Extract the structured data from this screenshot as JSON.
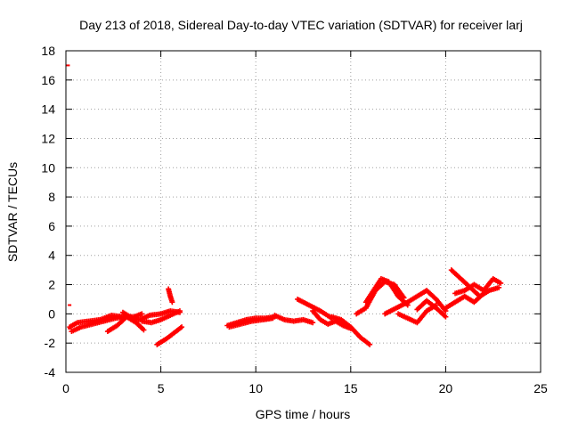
{
  "chart_data": {
    "type": "scatter",
    "title": "Day 213 of 2018, Sidereal Day-to-day VTEC variation (SDTVAR) for receiver larj",
    "xlabel": "GPS time / hours",
    "ylabel": "SDTVAR / TECUs",
    "xlim": [
      0,
      25
    ],
    "ylim": [
      -4,
      18
    ],
    "xticks": [
      0,
      5,
      10,
      15,
      20,
      25
    ],
    "yticks": [
      -4,
      -2,
      0,
      2,
      4,
      6,
      8,
      10,
      12,
      14,
      16,
      18
    ],
    "xtick_labels": [
      "0",
      "5",
      "10",
      "15",
      "20",
      "25"
    ],
    "ytick_labels": [
      "-4",
      "-2",
      "0",
      "2",
      "4",
      "6",
      "8",
      "10",
      "12",
      "14",
      "16",
      "18"
    ],
    "grid": true,
    "grid_style": "dotted",
    "legend": "none",
    "marker": "+",
    "series_color": "#ff0000",
    "series": [
      {
        "name": "SDTVAR",
        "outlier_points": [
          {
            "x": 0.02,
            "y": 17.0
          },
          {
            "x": 0.1,
            "y": 0.6
          },
          {
            "x": 0.1,
            "y": -1.0
          }
        ],
        "tracks": [
          {
            "x": [
              0.2,
              0.6,
              1.2,
              1.8,
              2.4,
              3.0,
              3.6,
              4.0
            ],
            "y": [
              -0.9,
              -0.6,
              -0.5,
              -0.4,
              -0.1,
              -0.2,
              -0.2,
              0.0
            ]
          },
          {
            "x": [
              0.3,
              0.8,
              1.4,
              2.0,
              2.6,
              3.1
            ],
            "y": [
              -1.2,
              -0.9,
              -0.7,
              -0.5,
              -0.3,
              -0.2
            ]
          },
          {
            "x": [
              2.2,
              2.7,
              3.2,
              3.7,
              4.1
            ],
            "y": [
              -1.2,
              -0.8,
              -0.2,
              -0.6,
              -1.1
            ]
          },
          {
            "x": [
              3.0,
              3.5,
              3.9,
              4.4,
              5.0,
              5.5,
              6.0
            ],
            "y": [
              0.1,
              -0.3,
              -0.4,
              -0.1,
              0.0,
              0.2,
              0.1
            ]
          },
          {
            "x": [
              4.0,
              4.5,
              5.0,
              5.5,
              6.0
            ],
            "y": [
              -0.5,
              -0.6,
              -0.4,
              -0.1,
              0.2
            ]
          },
          {
            "x": [
              4.8,
              5.3,
              5.8,
              6.1
            ],
            "y": [
              -2.1,
              -1.7,
              -1.2,
              -0.9
            ]
          },
          {
            "x": [
              5.4,
              5.5,
              5.6
            ],
            "y": [
              1.7,
              1.2,
              0.8
            ]
          },
          {
            "x": [
              8.5,
              9.0,
              9.5,
              10.0,
              10.5,
              11.0
            ],
            "y": [
              -0.8,
              -0.6,
              -0.4,
              -0.3,
              -0.3,
              -0.2
            ]
          },
          {
            "x": [
              8.6,
              9.2,
              9.8,
              10.4,
              10.9
            ],
            "y": [
              -0.9,
              -0.7,
              -0.5,
              -0.4,
              -0.3
            ]
          },
          {
            "x": [
              11.0,
              11.5,
              12.0,
              12.5,
              13.0
            ],
            "y": [
              -0.1,
              -0.4,
              -0.5,
              -0.4,
              -0.6
            ]
          },
          {
            "x": [
              12.2,
              12.8,
              13.4,
              14.0
            ],
            "y": [
              1.0,
              0.6,
              0.2,
              -0.3
            ]
          },
          {
            "x": [
              13.0,
              13.4,
              13.8,
              14.2,
              14.6,
              15.0
            ],
            "y": [
              0.2,
              -0.4,
              -0.7,
              -0.5,
              -0.8,
              -1.0
            ]
          },
          {
            "x": [
              14.0,
              14.5,
              15.0,
              15.5,
              16.0
            ],
            "y": [
              -0.2,
              -0.4,
              -0.9,
              -1.6,
              -2.1
            ]
          },
          {
            "x": [
              15.3,
              15.8,
              16.3,
              16.8,
              17.3,
              17.8
            ],
            "y": [
              0.0,
              0.4,
              1.6,
              2.2,
              2.0,
              1.1
            ]
          },
          {
            "x": [
              15.8,
              16.2,
              16.6,
              17.0,
              17.5,
              18.0
            ],
            "y": [
              0.8,
              1.6,
              2.4,
              2.2,
              1.2,
              0.6
            ]
          },
          {
            "x": [
              16.8,
              17.4,
              18.0,
              18.5,
              19.0,
              19.5,
              20.0
            ],
            "y": [
              0.0,
              0.4,
              0.8,
              1.2,
              1.6,
              1.0,
              0.2
            ]
          },
          {
            "x": [
              17.5,
              18.0,
              18.5,
              19.0,
              19.5
            ],
            "y": [
              0.0,
              -0.3,
              -0.6,
              0.2,
              0.6
            ]
          },
          {
            "x": [
              18.5,
              19.0,
              19.5,
              20.0
            ],
            "y": [
              0.3,
              0.9,
              0.4,
              -0.2
            ]
          },
          {
            "x": [
              20.3,
              20.8,
              21.3,
              21.8,
              22.3,
              22.8
            ],
            "y": [
              3.0,
              2.4,
              1.8,
              1.2,
              1.6,
              1.8
            ]
          },
          {
            "x": [
              20.5,
              21.0,
              21.5,
              22.0,
              22.5,
              22.9
            ],
            "y": [
              1.4,
              1.6,
              2.0,
              1.6,
              2.4,
              2.1
            ]
          },
          {
            "x": [
              20.0,
              20.5,
              21.0,
              21.5,
              22.0
            ],
            "y": [
              0.4,
              0.8,
              1.2,
              0.8,
              1.4
            ]
          }
        ]
      }
    ]
  }
}
